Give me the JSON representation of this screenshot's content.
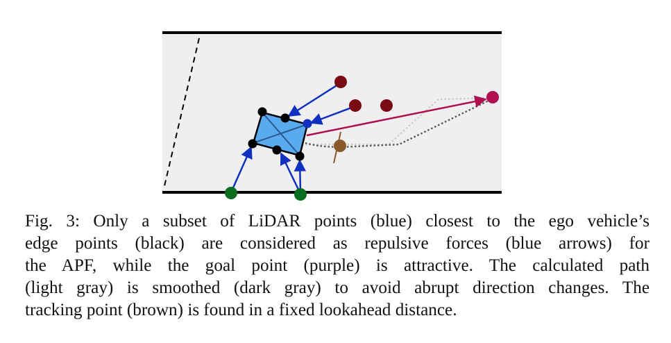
{
  "colors": {
    "road_bg": "#efefef",
    "road_edge": "#000000",
    "vehicle_fill": "#5aaaf0",
    "vehicle_edge": "#000000",
    "edge_point": "#000000",
    "lidar_point": "#1030c0",
    "repulsive_arrow": "#1030c0",
    "obstacle_point": "#7a0a14",
    "ground_point": "#0b6e1e",
    "goal_point": "#b01050",
    "attractive_arrow": "#b01050",
    "calculated_path": "#c8c8c8",
    "smoothed_path": "#555555",
    "tracking_point": "#8b5a2b"
  },
  "caption": {
    "lines": [
      "Fig. 3: Only a subset of LiDAR points (blue) closest to the ego vehicle’s",
      "edge points (black) are considered as repulsive forces (blue arrows) for",
      "the APF, while the goal point (purple) is attractive. The calculated path",
      "(light gray) is smoothed (dark gray) to avoid abrupt direction changes. The",
      "tracking point (brown) is found in a fixed lookahead distance."
    ]
  }
}
